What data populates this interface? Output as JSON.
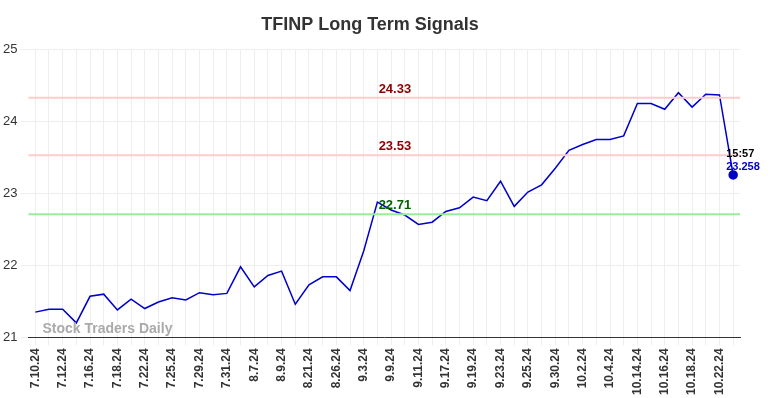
{
  "chart_data": {
    "type": "line",
    "title": "TFINP Long Term Signals",
    "categories": [
      "7.10.24",
      null,
      "7.12.24",
      null,
      "7.16.24",
      null,
      "7.18.24",
      null,
      "7.22.24",
      null,
      "7.25.24",
      null,
      "7.29.24",
      null,
      "7.31.24",
      null,
      "8.7.24",
      null,
      "8.9.24",
      null,
      "8.21.24",
      null,
      "8.26.24",
      null,
      "9.3.24",
      null,
      "9.9.24",
      null,
      "9.11.24",
      null,
      "9.17.24",
      null,
      "9.19.24",
      null,
      "9.23.24",
      null,
      "9.25.24",
      null,
      "9.30.24",
      null,
      "10.2.24",
      null,
      "10.4.24",
      null,
      "10.14.24",
      null,
      "10.16.24",
      null,
      "10.18.24",
      null,
      "10.22.24",
      null
    ],
    "values": [
      21.35,
      21.39,
      21.39,
      21.2,
      21.57,
      21.6,
      21.38,
      21.53,
      21.4,
      21.49,
      21.55,
      21.52,
      21.62,
      21.59,
      21.61,
      21.98,
      21.7,
      21.86,
      21.92,
      21.46,
      21.73,
      21.84,
      21.84,
      21.65,
      22.2,
      22.88,
      22.77,
      22.7,
      22.57,
      22.6,
      22.75,
      22.8,
      22.95,
      22.9,
      23.17,
      22.82,
      23.02,
      23.12,
      23.35,
      23.6,
      23.68,
      23.75,
      23.75,
      23.8,
      24.25,
      24.25,
      24.17,
      24.4,
      24.2,
      24.38,
      24.37,
      23.258
    ],
    "color": "#0000cc",
    "ylim": [
      21,
      25
    ],
    "yticks": [
      21,
      22,
      23,
      24,
      25
    ],
    "grid": true,
    "reference_lines": [
      {
        "value": 24.33,
        "color": "#ffcccc",
        "text_color": "#8b0000"
      },
      {
        "value": 23.53,
        "color": "#ffcccc",
        "text_color": "#8b0000"
      },
      {
        "value": 22.71,
        "color": "#99ee99",
        "text_color": "#006400"
      }
    ],
    "last_label": "15:57",
    "watermark": "Stock Traders Daily"
  }
}
